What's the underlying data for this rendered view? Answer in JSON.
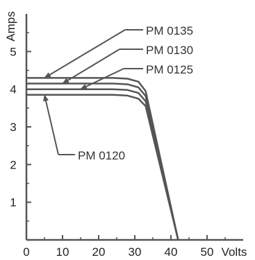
{
  "chart_data": {
    "type": "line",
    "title": "",
    "xlabel": "Volts",
    "ylabel": "Amps",
    "xlim": [
      0,
      60
    ],
    "ylim": [
      0,
      6
    ],
    "x_ticks": [
      "0",
      "10",
      "20",
      "30",
      "40",
      "50"
    ],
    "y_ticks": [
      "1",
      "2",
      "3",
      "4",
      "5"
    ],
    "grid": false,
    "legend": "none",
    "line_color": "#555555",
    "series": [
      {
        "name": "PM 0135",
        "points": [
          [
            0,
            4.3
          ],
          [
            24,
            4.3
          ],
          [
            28,
            4.28
          ],
          [
            31,
            4.2
          ],
          [
            33,
            3.95
          ],
          [
            42,
            0
          ]
        ]
      },
      {
        "name": "PM 0130",
        "points": [
          [
            0,
            4.15
          ],
          [
            24,
            4.15
          ],
          [
            28,
            4.13
          ],
          [
            31,
            4.05
          ],
          [
            33,
            3.82
          ],
          [
            42,
            0
          ]
        ]
      },
      {
        "name": "PM 0125",
        "points": [
          [
            0,
            4.0
          ],
          [
            24,
            4.0
          ],
          [
            28,
            3.98
          ],
          [
            31,
            3.9
          ],
          [
            33,
            3.68
          ],
          [
            42,
            0
          ]
        ]
      },
      {
        "name": "PM 0120",
        "points": [
          [
            0,
            3.85
          ],
          [
            24,
            3.85
          ],
          [
            28,
            3.83
          ],
          [
            31,
            3.75
          ],
          [
            33,
            3.55
          ],
          [
            42,
            0
          ]
        ]
      }
    ],
    "annotations": [
      {
        "text": "PM 0135",
        "series": "PM 0135",
        "arrow_to": [
          5,
          4.3
        ]
      },
      {
        "text": "PM 0130",
        "series": "PM 0130",
        "arrow_to": [
          10,
          4.15
        ]
      },
      {
        "text": "PM 0125",
        "series": "PM 0125",
        "arrow_to": [
          15,
          4.0
        ]
      },
      {
        "text": "PM 0120",
        "series": "PM 0120",
        "arrow_to": [
          5,
          3.85
        ]
      }
    ]
  }
}
